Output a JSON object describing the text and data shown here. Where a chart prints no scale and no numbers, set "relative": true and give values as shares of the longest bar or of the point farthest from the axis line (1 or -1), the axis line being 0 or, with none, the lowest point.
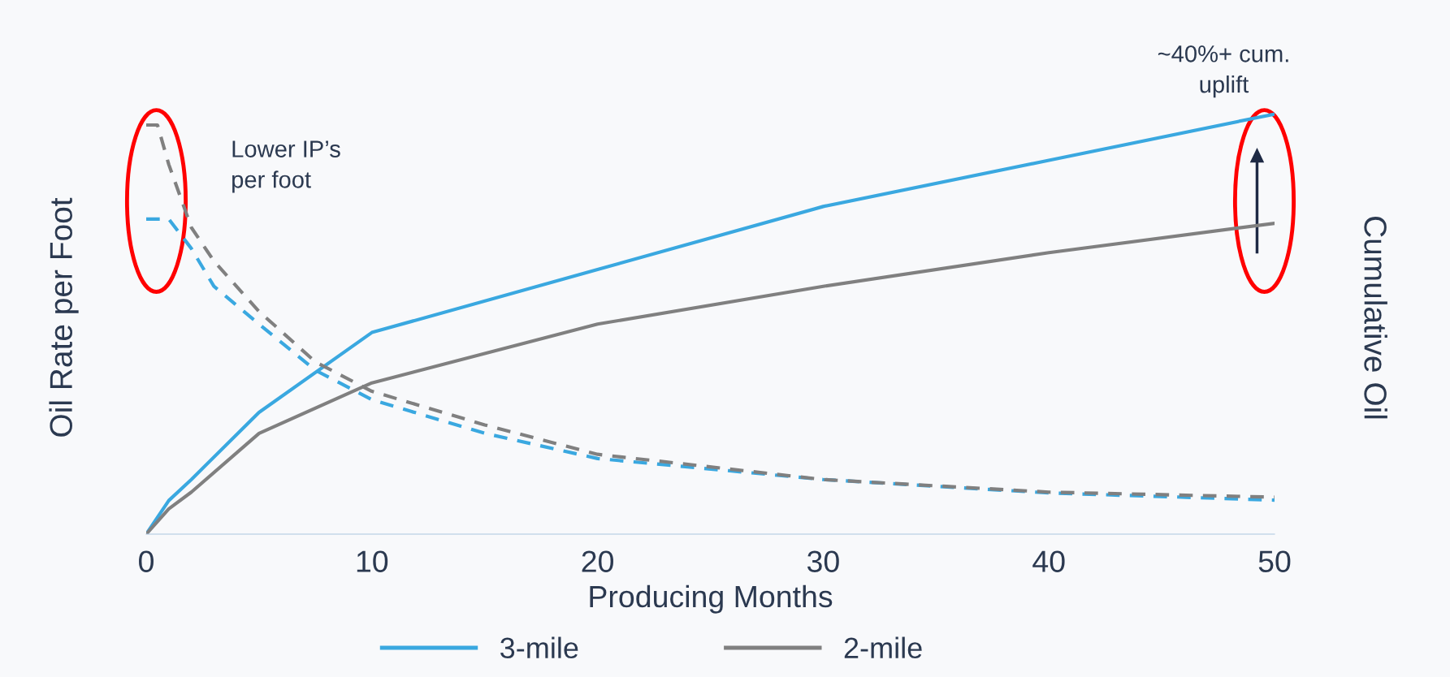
{
  "chart_data": {
    "type": "line",
    "relative": true,
    "xlabel": "Producing Months",
    "ylabel": "Oil Rate per Foot",
    "y2label": "Cumulative Oil",
    "xlim": [
      0,
      50
    ],
    "xticks": [
      0,
      10,
      20,
      30,
      40,
      50
    ],
    "grid": false,
    "legend": "bottom",
    "marker": "none",
    "annotations": [
      "Lower IP’s\nper foot",
      "~40%+ cum.\nuplift"
    ],
    "series": [
      {
        "name": "3-mile",
        "color": "#3aa8e0",
        "line_style": "solid",
        "x": [
          0,
          1,
          2,
          5,
          10,
          20,
          30,
          40,
          50
        ],
        "values": [
          0,
          0.08,
          0.13,
          0.29,
          0.48,
          0.63,
          0.78,
          0.89,
          1.0
        ]
      },
      {
        "name": "2-mile",
        "color": "#808080",
        "line_style": "solid",
        "x": [
          0,
          1,
          2,
          5,
          10,
          20,
          30,
          40,
          50
        ],
        "values": [
          0,
          0.06,
          0.1,
          0.24,
          0.36,
          0.5,
          0.59,
          0.67,
          0.74
        ]
      },
      {
        "color": "#3aa8e0",
        "line_style": "dashed",
        "x": [
          0,
          1,
          2,
          3,
          5,
          7.5,
          10,
          15,
          20,
          30,
          40,
          50
        ],
        "values": [
          0.75,
          0.75,
          0.68,
          0.59,
          0.5,
          0.39,
          0.32,
          0.24,
          0.18,
          0.13,
          0.098,
          0.081
        ]
      },
      {
        "color": "#808080",
        "line_style": "dashed",
        "x": [
          0,
          0.5,
          1,
          2,
          3,
          5,
          7.5,
          10,
          15,
          20,
          30,
          40,
          50
        ],
        "values": [
          0.974,
          0.974,
          0.88,
          0.73,
          0.65,
          0.53,
          0.41,
          0.34,
          0.26,
          0.19,
          0.13,
          0.1,
          0.088
        ]
      }
    ]
  }
}
